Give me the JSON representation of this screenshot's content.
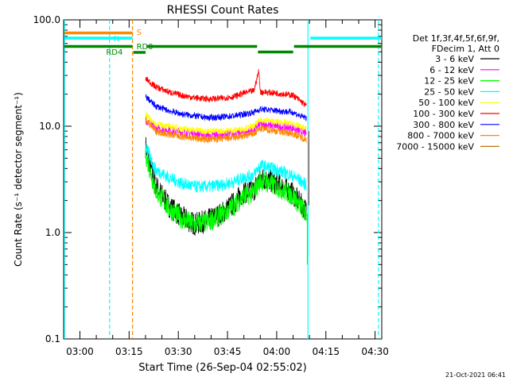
{
  "chart_data": {
    "type": "line",
    "title": "RHESSI Count Rates",
    "xlabel": "Start Time (26-Sep-04 02:55:02)",
    "ylabel": "Count Rate (s⁻¹ detector segment⁻¹)",
    "yscale": "log",
    "ylim": [
      0.1,
      100.0
    ],
    "xlim_minutes_after_0255_02": [
      0,
      97
    ],
    "y_tick_labels": [
      "0.1",
      "1.0",
      "10.0",
      "100.0"
    ],
    "x_tick_labels": [
      "03:00",
      "03:15",
      "03:30",
      "03:45",
      "04:00",
      "04:15",
      "04:30"
    ],
    "legend_header": [
      "Det 1f,3f,4f,5f,6f,9f,",
      "FDecim 1, Att 0"
    ],
    "series": [
      {
        "name": "3 - 6 keV",
        "color": "#000000",
        "x": [
          25,
          28,
          32,
          36,
          40,
          44,
          48,
          52,
          55,
          58,
          60,
          65,
          70,
          72,
          74
        ],
        "y": [
          6.5,
          2.8,
          1.8,
          1.4,
          1.2,
          1.3,
          1.5,
          1.9,
          2.4,
          2.5,
          3.3,
          2.9,
          2.3,
          1.9,
          1.6
        ]
      },
      {
        "name": "6 - 12 keV",
        "color": "#ff00ff",
        "x": [
          25,
          28,
          32,
          36,
          40,
          44,
          48,
          52,
          55,
          58,
          60,
          65,
          70,
          72,
          74
        ],
        "y": [
          11.5,
          9.5,
          9.2,
          8.8,
          8.5,
          8.2,
          8.3,
          8.5,
          8.8,
          9.2,
          10.5,
          10.0,
          9.6,
          9.0,
          8.5
        ]
      },
      {
        "name": "12 - 25 keV",
        "color": "#00ff00",
        "x": [
          25,
          28,
          32,
          36,
          40,
          44,
          48,
          52,
          55,
          58,
          60,
          65,
          70,
          72,
          74
        ],
        "y": [
          5.5,
          2.5,
          1.7,
          1.35,
          1.2,
          1.25,
          1.45,
          1.8,
          2.2,
          2.4,
          3.1,
          2.7,
          2.2,
          1.8,
          1.5
        ]
      },
      {
        "name": "25 - 50 keV",
        "color": "#00ffff",
        "x": [
          25,
          28,
          32,
          36,
          40,
          44,
          48,
          52,
          55,
          58,
          60,
          65,
          70,
          72,
          74
        ],
        "y": [
          6.5,
          3.9,
          3.3,
          2.9,
          2.7,
          2.7,
          2.8,
          3.0,
          3.3,
          3.5,
          4.3,
          3.9,
          3.4,
          3.1,
          2.8
        ]
      },
      {
        "name": "50 - 100 keV",
        "color": "#ffff00",
        "x": [
          25,
          28,
          32,
          36,
          40,
          44,
          48,
          52,
          55,
          58,
          60,
          65,
          70,
          72,
          74
        ],
        "y": [
          13.0,
          10.5,
          10.0,
          9.5,
          9.2,
          9.0,
          9.0,
          9.2,
          9.5,
          10.0,
          11.5,
          11.0,
          10.5,
          10.0,
          9.5
        ]
      },
      {
        "name": "100 - 300 keV",
        "color": "#ff0000",
        "x": [
          25,
          28,
          32,
          36,
          40,
          44,
          48,
          52,
          55,
          58,
          59.5,
          60,
          65,
          70,
          72,
          74
        ],
        "y": [
          28.0,
          23.5,
          21.0,
          19.5,
          18.5,
          18.0,
          18.3,
          19.0,
          20.5,
          21.5,
          33.0,
          21.0,
          20.5,
          19.5,
          17.5,
          15.5
        ]
      },
      {
        "name": "300 - 800 keV",
        "color": "#0000ff",
        "x": [
          25,
          28,
          32,
          36,
          40,
          44,
          48,
          52,
          55,
          58,
          60,
          65,
          70,
          72,
          74
        ],
        "y": [
          19.0,
          15.5,
          14.0,
          13.0,
          12.5,
          12.0,
          12.2,
          12.5,
          13.0,
          13.5,
          14.5,
          14.0,
          13.5,
          12.5,
          12.0
        ]
      },
      {
        "name": "800 - 7000 keV",
        "color": "#ff8800",
        "x": [
          25,
          28,
          32,
          36,
          40,
          44,
          48,
          52,
          55,
          58,
          60,
          65,
          70,
          72,
          74
        ],
        "y": [
          11.5,
          9.0,
          8.4,
          8.0,
          7.7,
          7.5,
          7.6,
          7.8,
          8.1,
          8.5,
          9.5,
          9.0,
          8.5,
          8.0,
          7.5
        ]
      },
      {
        "name": "7000 - 15000 keV",
        "color": "#c07800",
        "x": [],
        "y": []
      }
    ],
    "annotations": {
      "attenuator_bars": [
        {
          "label": "S",
          "color": "#ff8800",
          "level": "top",
          "segments": [
            [
              0,
              21
            ]
          ]
        },
        {
          "label": "N",
          "color": "#00ffff",
          "level": "second",
          "segments": [
            [
              0,
              21
            ],
            [
              75,
              97
            ]
          ]
        },
        {
          "label": "RD4",
          "color": "#008800",
          "level": "third",
          "segments": [
            [
              21,
              25
            ]
          ]
        },
        {
          "label": "RD0",
          "color": "#008800",
          "level": "fourth",
          "segments": [
            [
              0,
              21
            ],
            [
              25,
              59
            ],
            [
              59,
              70
            ],
            [
              70,
              97
            ]
          ]
        }
      ],
      "vertical_lines": [
        {
          "x": 0,
          "color": "#00ffff",
          "style": "solid"
        },
        {
          "x": 14,
          "color": "#00ffff",
          "style": "dashed"
        },
        {
          "x": 21,
          "color": "#ff8800",
          "style": "dashed"
        },
        {
          "x": 74.5,
          "color": "#00ffff",
          "style": "solid"
        },
        {
          "x": 96,
          "color": "#00ffff",
          "style": "dashed"
        }
      ]
    },
    "footer_timestamp": "21-Oct-2021 06:41",
    "grid": false,
    "legend_position": "right"
  }
}
